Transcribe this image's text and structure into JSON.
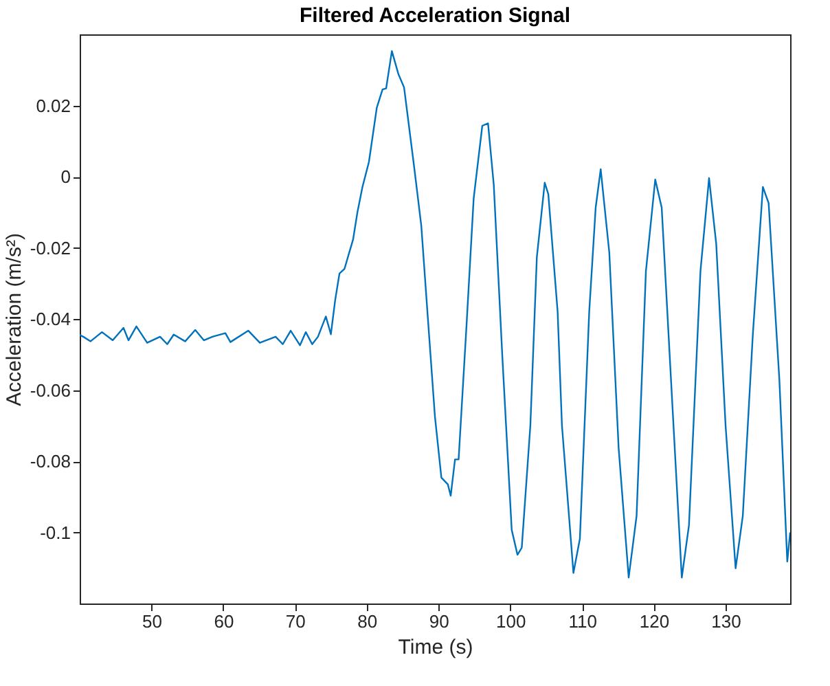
{
  "chart_data": {
    "type": "line",
    "title": "Filtered Acceleration Signal",
    "xlabel": "Time (s)",
    "ylabel": "Acceleration (m/s²)",
    "xlim": [
      40,
      139
    ],
    "xticks": [
      50,
      60,
      70,
      80,
      90,
      100,
      110,
      120,
      130
    ],
    "ylim": [
      -0.12,
      0.04
    ],
    "yticks": [
      0.02,
      0,
      -0.02,
      -0.04,
      -0.06,
      -0.08,
      -0.1
    ],
    "grid": false,
    "legend": false,
    "marker": "none",
    "line_style": "solid",
    "x": [
      40,
      40.5,
      41.5,
      43.1,
      44.6,
      46.1,
      46.8,
      47.9,
      49.4,
      51.2,
      52.2,
      53.1,
      54.7,
      56.1,
      57.3,
      58.5,
      60.3,
      61.0,
      63.5,
      65.1,
      67.3,
      68.3,
      69.4,
      70.7,
      71.5,
      72.4,
      73.2,
      74.3,
      75.0,
      75.6,
      76.2,
      76.9,
      78.1,
      78.7,
      79.4,
      80.3,
      81.4,
      82.2,
      82.7,
      83.5,
      84.4,
      85.2,
      86.6,
      87.6,
      88.5,
      89.5,
      90.4,
      91.3,
      91.7,
      92.3,
      92.8,
      93.9,
      94.9,
      96.1,
      96.9,
      97.7,
      98.9,
      100.2,
      101.0,
      101.6,
      102.8,
      103.7,
      104.8,
      105.3,
      106.6,
      107.2,
      108.8,
      109.7,
      111.0,
      111.9,
      112.6,
      113.8,
      115.1,
      116.5,
      117.6,
      118.9,
      120.2,
      121.1,
      122.4,
      123.9,
      124.9,
      126.5,
      127.7,
      128.7,
      130.0,
      131.4,
      132.4,
      133.8,
      135.2,
      136.0,
      137.5,
      138.6,
      139
    ],
    "series": [
      {
        "color": "#0072bd",
        "values": [
          -0.0445,
          -0.045,
          -0.0463,
          -0.0437,
          -0.046,
          -0.0425,
          -0.046,
          -0.0421,
          -0.0467,
          -0.045,
          -0.0471,
          -0.0444,
          -0.0463,
          -0.0431,
          -0.046,
          -0.045,
          -0.044,
          -0.0465,
          -0.0433,
          -0.0467,
          -0.045,
          -0.0471,
          -0.0433,
          -0.0474,
          -0.0437,
          -0.0471,
          -0.045,
          -0.0393,
          -0.0443,
          -0.0347,
          -0.0272,
          -0.0259,
          -0.0176,
          -0.01,
          -0.0029,
          0.0041,
          0.0194,
          0.0245,
          0.0248,
          0.0353,
          0.0289,
          0.0251,
          0.0028,
          -0.0138,
          -0.0393,
          -0.0674,
          -0.0846,
          -0.0865,
          -0.0897,
          -0.0795,
          -0.0795,
          -0.0419,
          -0.0061,
          0.0143,
          0.015,
          -0.0023,
          -0.0508,
          -0.0993,
          -0.1063,
          -0.1043,
          -0.0699,
          -0.0227,
          -0.0017,
          -0.0049,
          -0.038,
          -0.0699,
          -0.1114,
          -0.1018,
          -0.038,
          -0.0087,
          0.0021,
          -0.0214,
          -0.0763,
          -0.1127,
          -0.0954,
          -0.0266,
          -0.0008,
          -0.0087,
          -0.0572,
          -0.1127,
          -0.098,
          -0.0266,
          -0.0004,
          -0.0189,
          -0.0699,
          -0.1101,
          -0.0954,
          -0.0444,
          -0.0029,
          -0.0074,
          -0.0572,
          -0.1082,
          -0.1
        ]
      }
    ]
  }
}
